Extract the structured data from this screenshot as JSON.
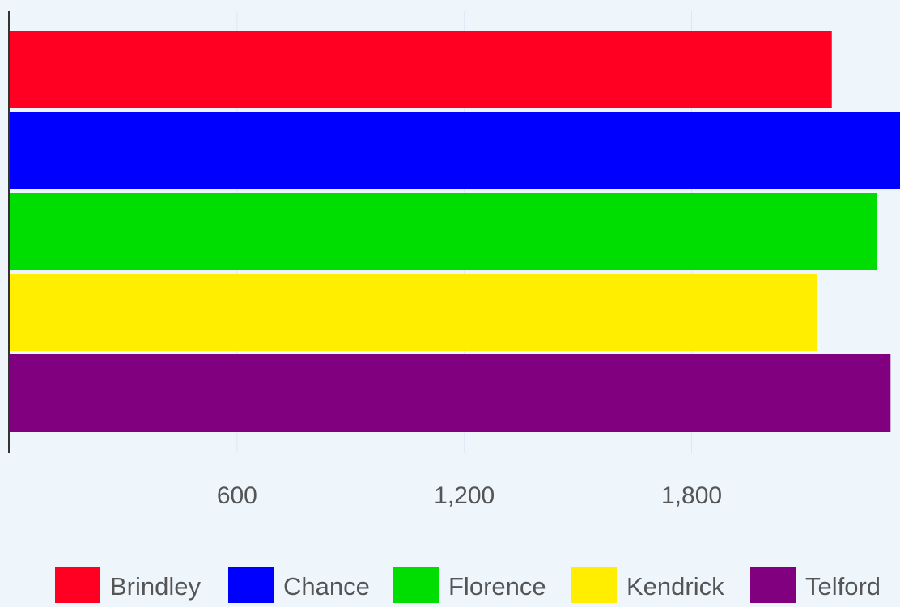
{
  "chart_data": {
    "type": "bar",
    "orientation": "horizontal",
    "title": "",
    "xlabel": "",
    "ylabel": "",
    "xlim": [
      0,
      2350
    ],
    "grid": true,
    "legend_position": "bottom",
    "x_ticks": [
      {
        "value": 600,
        "label": "600"
      },
      {
        "value": 1200,
        "label": "1,200"
      },
      {
        "value": 1800,
        "label": "1,800"
      }
    ],
    "series": [
      {
        "name": "Brindley",
        "value": 2170,
        "color": "#ff0022"
      },
      {
        "name": "Chance",
        "value": 2350,
        "color": "#0000ff"
      },
      {
        "name": "Florence",
        "value": 2290,
        "color": "#00dd00"
      },
      {
        "name": "Kendrick",
        "value": 2130,
        "color": "#ffee00"
      },
      {
        "name": "Telford",
        "value": 2325,
        "color": "#800080"
      }
    ]
  }
}
